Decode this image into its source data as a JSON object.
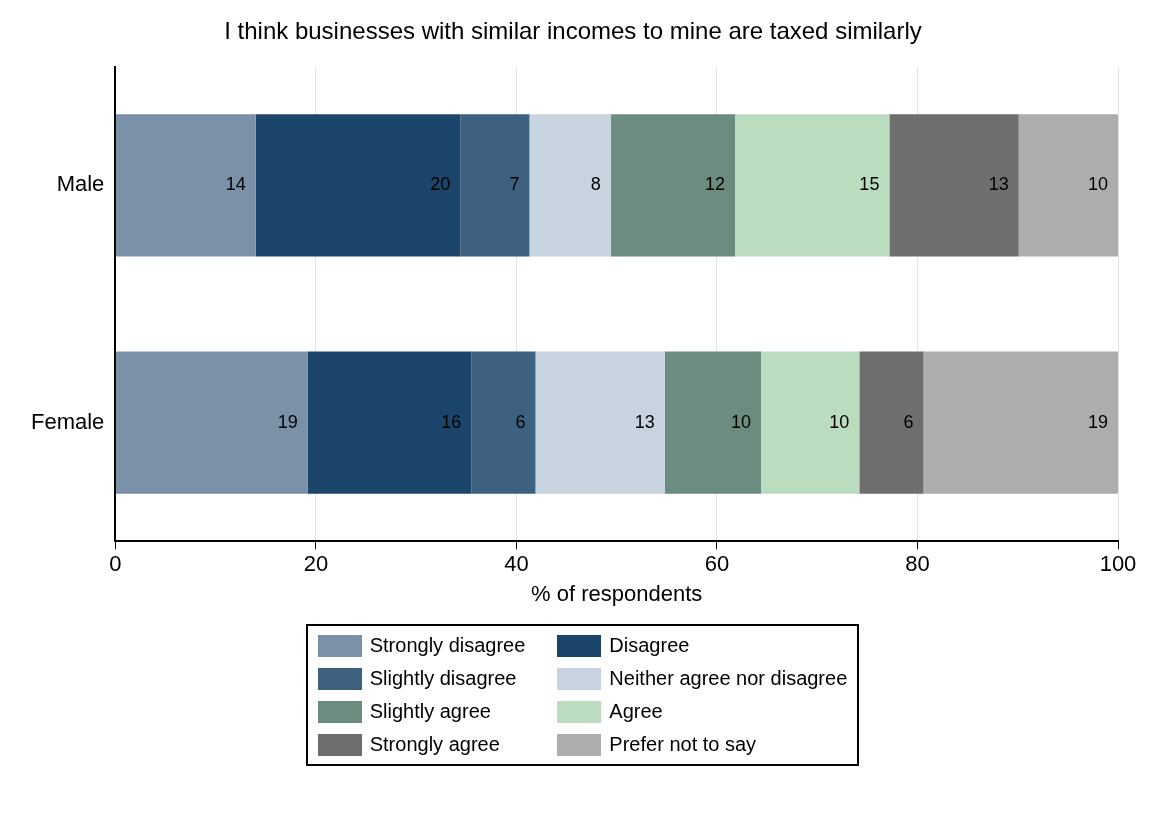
{
  "chart_data": {
    "type": "bar",
    "orientation": "horizontal",
    "stacked": true,
    "title": "I think businesses with similar incomes to mine are taxed similarly",
    "xlabel": "% of respondents",
    "categories": [
      "Male",
      "Female"
    ],
    "xlim": [
      0,
      100
    ],
    "xticks": [
      0,
      20,
      40,
      60,
      80,
      100
    ],
    "grid": "x",
    "legend": "bottom",
    "series": [
      {
        "name": "Strongly disagree",
        "color": "#7b91a8",
        "values": [
          14.0,
          19.2
        ],
        "value_labels": [
          "14",
          "19"
        ]
      },
      {
        "name": "Disagree",
        "color": "#1c456b",
        "values": [
          20.4,
          16.3
        ],
        "value_labels": [
          "20",
          "16"
        ]
      },
      {
        "name": "Slightly disagree",
        "color": "#3d617e",
        "values": [
          6.9,
          6.4
        ],
        "value_labels": [
          "7",
          "6"
        ]
      },
      {
        "name": "Neither agree nor disagree",
        "color": "#c7d3df",
        "values": [
          8.1,
          12.9
        ],
        "value_labels": [
          "8",
          "13"
        ]
      },
      {
        "name": "Slightly agree",
        "color": "#6b8c7e",
        "values": [
          12.4,
          9.6
        ],
        "value_labels": [
          "12",
          "10"
        ]
      },
      {
        "name": "Agree",
        "color": "#bcdcc0",
        "values": [
          15.4,
          9.8
        ],
        "value_labels": [
          "15",
          "10"
        ]
      },
      {
        "name": "Strongly agree",
        "color": "#6e6e6e",
        "values": [
          12.9,
          6.4
        ],
        "value_labels": [
          "13",
          "6"
        ]
      },
      {
        "name": "Prefer not to say",
        "color": "#adadad",
        "values": [
          9.9,
          19.4
        ],
        "value_labels": [
          "10",
          "19"
        ]
      }
    ]
  }
}
